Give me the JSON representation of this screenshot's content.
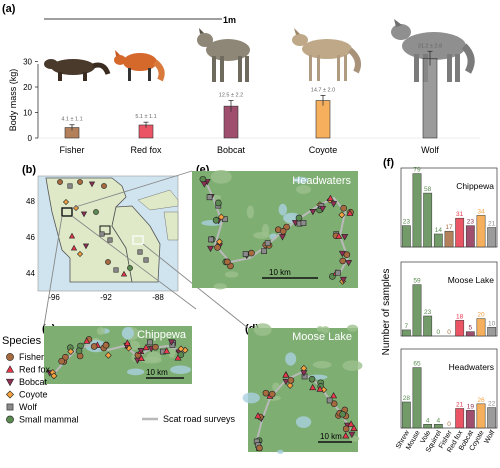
{
  "panels": {
    "a": "(a)",
    "b": "(b)",
    "c": "(c)",
    "d": "(d)",
    "e": "(e)",
    "f": "(f)"
  },
  "scale_bar_label": "1m",
  "colors": {
    "Fisher": "#a66a3e",
    "Red fox": "#e8364a",
    "Bobcat": "#8e2f53",
    "Coyote": "#f4a140",
    "Wolf": "#8a8a8a",
    "Small mammal": "#5a8a50",
    "Scat road surveys": "#b9b9b9",
    "map_land": "#dfe9c8",
    "map_water": "#cfe4ef",
    "forest": "#7fae73"
  },
  "map_b": {
    "lat_ticks": [
      "48",
      "46",
      "44"
    ],
    "lon_ticks": [
      "-96",
      "-92",
      "-88"
    ]
  },
  "inset_titles": {
    "c": "Chippewa",
    "d": "Moose Lake",
    "e": "Headwaters"
  },
  "inset_scale": "10 km",
  "legend": {
    "title": "Species",
    "items": [
      "Fisher",
      "Red fox",
      "Bobcat",
      "Coyote",
      "Wolf",
      "Small mammal"
    ],
    "road_label": "Scat road surveys"
  },
  "chart_data": [
    {
      "type": "bar",
      "panel": "a",
      "title": "",
      "ylabel": "Body mass (kg)",
      "ylim": [
        0,
        40
      ],
      "yticks": [
        "0",
        "10",
        "20",
        "30"
      ],
      "categories": [
        "Fisher",
        "Red fox",
        "Bobcat",
        "Coyote",
        "Wolf"
      ],
      "values": [
        4.1,
        5.1,
        12.5,
        14.7,
        31.2
      ],
      "errors": [
        1.1,
        1.1,
        2.2,
        2.0,
        2.8
      ],
      "data_labels": [
        "4.1 ± 1.1",
        "5.1 ± 1.1",
        "12.5 ± 2.2",
        "14.7 ± 2.0",
        "31.2 ± 2.8"
      ]
    },
    {
      "type": "bar",
      "panel": "f",
      "ylabel": "Number of samples",
      "categories": [
        "Shrew",
        "Mouse",
        "Vole",
        "Squirrel",
        "Fisher",
        "Red fox",
        "Bobcat",
        "Coyote",
        "Wolf"
      ],
      "facets": [
        {
          "title": "Chippewa",
          "values": [
            23,
            79,
            58,
            14,
            17,
            31,
            23,
            34,
            21
          ]
        },
        {
          "title": "Moose Lake",
          "values": [
            7,
            59,
            23,
            0,
            0,
            18,
            5,
            20,
            10
          ]
        },
        {
          "title": "Headwaters",
          "values": [
            28,
            65,
            4,
            4,
            0,
            21,
            19,
            26,
            22
          ]
        }
      ]
    }
  ]
}
